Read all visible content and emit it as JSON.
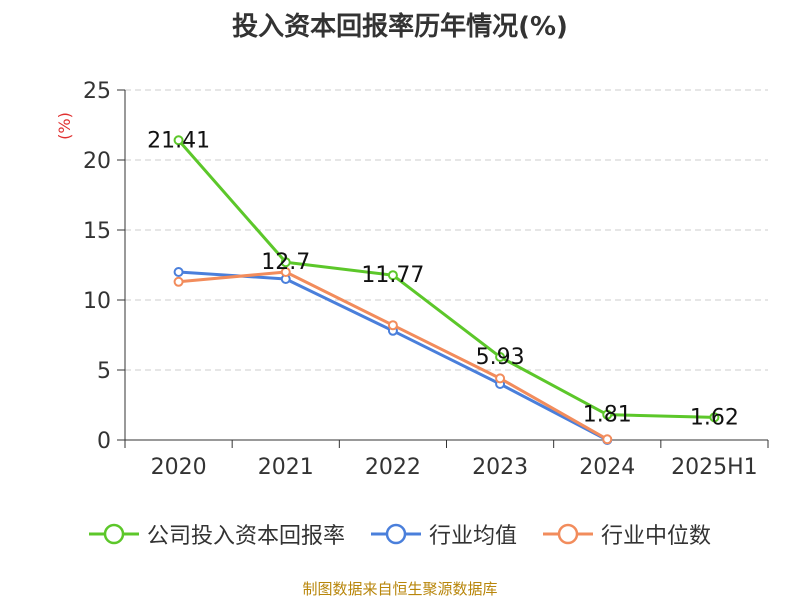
{
  "chart_data": {
    "type": "line",
    "title": "投入资本回报率历年情况(%)",
    "ylabel": "(%)",
    "ylim": [
      0,
      25
    ],
    "yticks": [
      0,
      5,
      10,
      15,
      20,
      25
    ],
    "categories": [
      "2020",
      "2021",
      "2022",
      "2023",
      "2024",
      "2025H1"
    ],
    "grid": true,
    "legend_position": "bottom",
    "series": [
      {
        "name": "公司投入资本回报率",
        "color": "#5cc72a",
        "values": [
          21.41,
          12.7,
          11.77,
          5.93,
          1.81,
          1.62
        ],
        "labels": true
      },
      {
        "name": "行业均值",
        "color": "#4a7fdb",
        "values": [
          12.0,
          11.5,
          7.8,
          4.0,
          0.0,
          null
        ],
        "labels": false
      },
      {
        "name": "行业中位数",
        "color": "#f28c5c",
        "values": [
          11.3,
          12.0,
          8.2,
          4.4,
          0.05,
          null
        ],
        "labels": false
      }
    ]
  },
  "source": "制图数据来自恒生聚源数据库"
}
